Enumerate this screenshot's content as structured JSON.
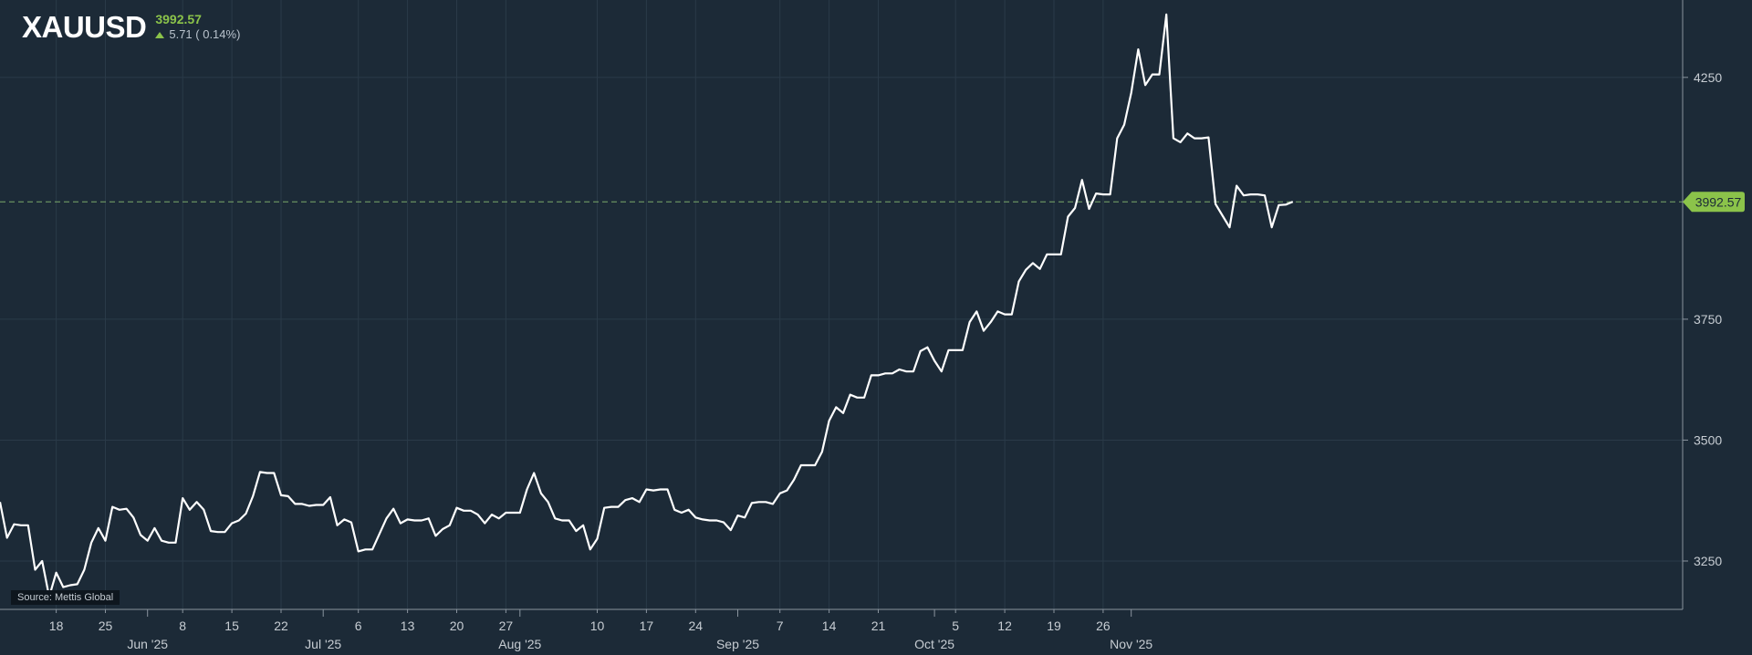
{
  "header": {
    "symbol": "XAUUSD",
    "last_price": "3992.57",
    "change": "5.71 ( 0.14%)"
  },
  "source_label": "Source: Mettis Global",
  "colors": {
    "background": "#1c2a37",
    "line": "#ffffff",
    "up": "#8bc34a",
    "grid": "#2a3a48",
    "axis": "#8a949e"
  },
  "chart_data": {
    "type": "line",
    "series": [
      {
        "values": [
          3372,
          3298,
          3326,
          3324,
          3324,
          3232,
          3250,
          3176,
          3226,
          3196,
          3200,
          3202,
          3232,
          3288,
          3318,
          3292,
          3362,
          3356,
          3358,
          3340,
          3304,
          3292,
          3318,
          3292,
          3288,
          3288,
          3380,
          3356,
          3372,
          3356,
          3312,
          3310,
          3310,
          3328,
          3334,
          3348,
          3384,
          3434,
          3432,
          3432,
          3386,
          3384,
          3368,
          3368,
          3364,
          3366,
          3366,
          3382,
          3324,
          3336,
          3330,
          3270,
          3274,
          3274,
          3306,
          3338,
          3358,
          3328,
          3336,
          3334,
          3334,
          3338,
          3302,
          3316,
          3324,
          3360,
          3354,
          3354,
          3346,
          3328,
          3346,
          3338,
          3350,
          3350,
          3350,
          3398,
          3432,
          3390,
          3372,
          3338,
          3334,
          3334,
          3312,
          3324,
          3274,
          3296,
          3360,
          3362,
          3362,
          3376,
          3380,
          3372,
          3398,
          3396,
          3398,
          3398,
          3356,
          3350,
          3356,
          3340,
          3336,
          3334,
          3334,
          3330,
          3314,
          3344,
          3340,
          3370,
          3372,
          3372,
          3368,
          3390,
          3396,
          3418,
          3448,
          3448,
          3448,
          3476,
          3540,
          3568,
          3556,
          3594,
          3588,
          3588,
          3634,
          3634,
          3638,
          3638,
          3646,
          3642,
          3642,
          3684,
          3692,
          3664,
          3642,
          3686,
          3686,
          3686,
          3744,
          3766,
          3726,
          3744,
          3766,
          3760,
          3760,
          3828,
          3852,
          3866,
          3854,
          3884,
          3884,
          3884,
          3962,
          3980,
          4038,
          3978,
          4010,
          4008,
          4008,
          4124,
          4152,
          4218,
          4308,
          4234,
          4256,
          4256,
          4380,
          4124,
          4116,
          4134,
          4124,
          4124,
          4126,
          3988,
          3964,
          3940,
          4026,
          4006,
          4008,
          4008,
          4006,
          3940,
          3986,
          3987,
          3993
        ]
      }
    ],
    "ylim": [
      3150,
      4410
    ],
    "y_ticks": [
      3250,
      3500,
      3750,
      4250
    ],
    "last_value": 3992.57,
    "last_value_label": "3992.57",
    "x_tick_labels": [
      {
        "label": "18",
        "index": 8
      },
      {
        "label": "25",
        "index": 15
      },
      {
        "label": "8",
        "index": 26
      },
      {
        "label": "15",
        "index": 33
      },
      {
        "label": "22",
        "index": 40
      },
      {
        "label": "6",
        "index": 51
      },
      {
        "label": "13",
        "index": 58
      },
      {
        "label": "20",
        "index": 65
      },
      {
        "label": "27",
        "index": 72
      },
      {
        "label": "10",
        "index": 85
      },
      {
        "label": "17",
        "index": 92
      },
      {
        "label": "24",
        "index": 99
      },
      {
        "label": "7",
        "index": 111
      },
      {
        "label": "14",
        "index": 118
      },
      {
        "label": "21",
        "index": 125
      },
      {
        "label": "5",
        "index": 136
      },
      {
        "label": "12",
        "index": 143
      },
      {
        "label": "19",
        "index": 150
      },
      {
        "label": "26",
        "index": 157
      }
    ],
    "month_labels": [
      {
        "label": "Jun '25",
        "index": 21
      },
      {
        "label": "Jul '25",
        "index": 46
      },
      {
        "label": "Aug '25",
        "index": 74
      },
      {
        "label": "Sep '25",
        "index": 105
      },
      {
        "label": "Oct '25",
        "index": 133
      },
      {
        "label": "Nov '25",
        "index": 161
      }
    ],
    "grid": true
  }
}
